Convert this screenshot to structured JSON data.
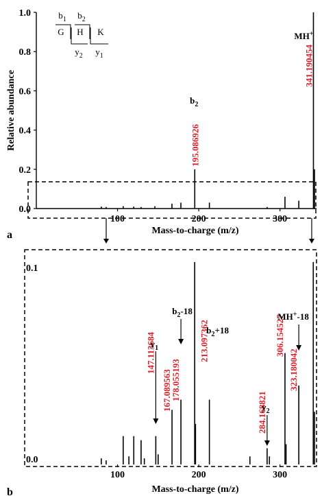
{
  "chart_data": [
    {
      "panel_label": "a",
      "type": "bar",
      "xlabel": "Mass-to-charge (m/z)",
      "ylabel": "Relative abundance",
      "xlim": [
        0,
        345
      ],
      "ylim": [
        0,
        1.0
      ],
      "xticks": [
        100,
        200,
        300
      ],
      "yticks": [
        "0.0",
        "0.2",
        "0.4",
        "0.6",
        "0.8",
        "1.0"
      ],
      "peaks": [
        {
          "x": 80,
          "y": 0.01
        },
        {
          "x": 86,
          "y": 0.008
        },
        {
          "x": 107,
          "y": 0.012
        },
        {
          "x": 120,
          "y": 0.01
        },
        {
          "x": 129,
          "y": 0.008
        },
        {
          "x": 146,
          "y": 0.012
        },
        {
          "x": 167,
          "y": 0.025
        },
        {
          "x": 178,
          "y": 0.03
        },
        {
          "x": 195.086926,
          "y": 0.2
        },
        {
          "x": 213.097362,
          "y": 0.03
        },
        {
          "x": 284.168821,
          "y": 0.008
        },
        {
          "x": 306.154527,
          "y": 0.06
        },
        {
          "x": 323.180042,
          "y": 0.04
        },
        {
          "x": 341.190454,
          "y": 1.0
        },
        {
          "x": 342.5,
          "y": 0.2
        }
      ],
      "peak_labels": [
        {
          "x": 195.086926,
          "text": "195.086926",
          "ion": "b",
          "ion_sub": "2"
        },
        {
          "x": 341.190454,
          "text": "341.190454",
          "ion": "MH",
          "ion_sup": "+"
        }
      ],
      "sequence": {
        "residues": [
          "G",
          "H",
          "K"
        ],
        "b_ions": [
          {
            "t": "b",
            "s": "1"
          },
          {
            "t": "b",
            "s": "2"
          }
        ],
        "y_ions": [
          {
            "t": "y",
            "s": "2"
          },
          {
            "t": "y",
            "s": "1"
          }
        ]
      }
    },
    {
      "panel_label": "b",
      "type": "bar",
      "xlabel": "Mass-to-charge (m/z)",
      "xlim": [
        0,
        345
      ],
      "ylim": [
        0,
        0.1
      ],
      "xticks": [
        100,
        200,
        300
      ],
      "yticks": [
        "0.0",
        "0.1"
      ],
      "peaks": [
        {
          "x": 80,
          "y": 0.003
        },
        {
          "x": 86,
          "y": 0.002
        },
        {
          "x": 107,
          "y": 0.014
        },
        {
          "x": 114,
          "y": 0.004
        },
        {
          "x": 120,
          "y": 0.014
        },
        {
          "x": 129,
          "y": 0.012
        },
        {
          "x": 133,
          "y": 0.003
        },
        {
          "x": 147.113684,
          "y": 0.014
        },
        {
          "x": 150,
          "y": 0.005
        },
        {
          "x": 167.089563,
          "y": 0.027
        },
        {
          "x": 178.055193,
          "y": 0.032
        },
        {
          "x": 195,
          "y": 0.1
        },
        {
          "x": 196,
          "y": 0.02
        },
        {
          "x": 213.097362,
          "y": 0.032
        },
        {
          "x": 263,
          "y": 0.004
        },
        {
          "x": 284.168821,
          "y": 0.008
        },
        {
          "x": 287,
          "y": 0.004
        },
        {
          "x": 306.154527,
          "y": 0.055
        },
        {
          "x": 307.5,
          "y": 0.01
        },
        {
          "x": 323.180042,
          "y": 0.039
        },
        {
          "x": 341,
          "y": 0.1
        },
        {
          "x": 342.5,
          "y": 0.026
        }
      ],
      "peak_labels": [
        {
          "x": 147.113684,
          "text": "147.113684",
          "ion": "y",
          "ion_sub": "1"
        },
        {
          "x": 167.089563,
          "text": "167.089563"
        },
        {
          "x": 178.055193,
          "text": "178.055193",
          "ion": "b",
          "ion_sub": "2",
          "ion_suffix": "-18"
        },
        {
          "x": 213.097362,
          "text": "213.097362",
          "ion": "b",
          "ion_sub": "2",
          "ion_suffix": "+18"
        },
        {
          "x": 284.168821,
          "text": "284.168821",
          "ion": "y",
          "ion_sub": "2"
        },
        {
          "x": 306.154527,
          "text": "306.154527"
        },
        {
          "x": 323.180042,
          "text": "323.180042",
          "ion": "MH",
          "ion_sup": "+",
          "ion_suffix": "-18"
        }
      ]
    }
  ]
}
